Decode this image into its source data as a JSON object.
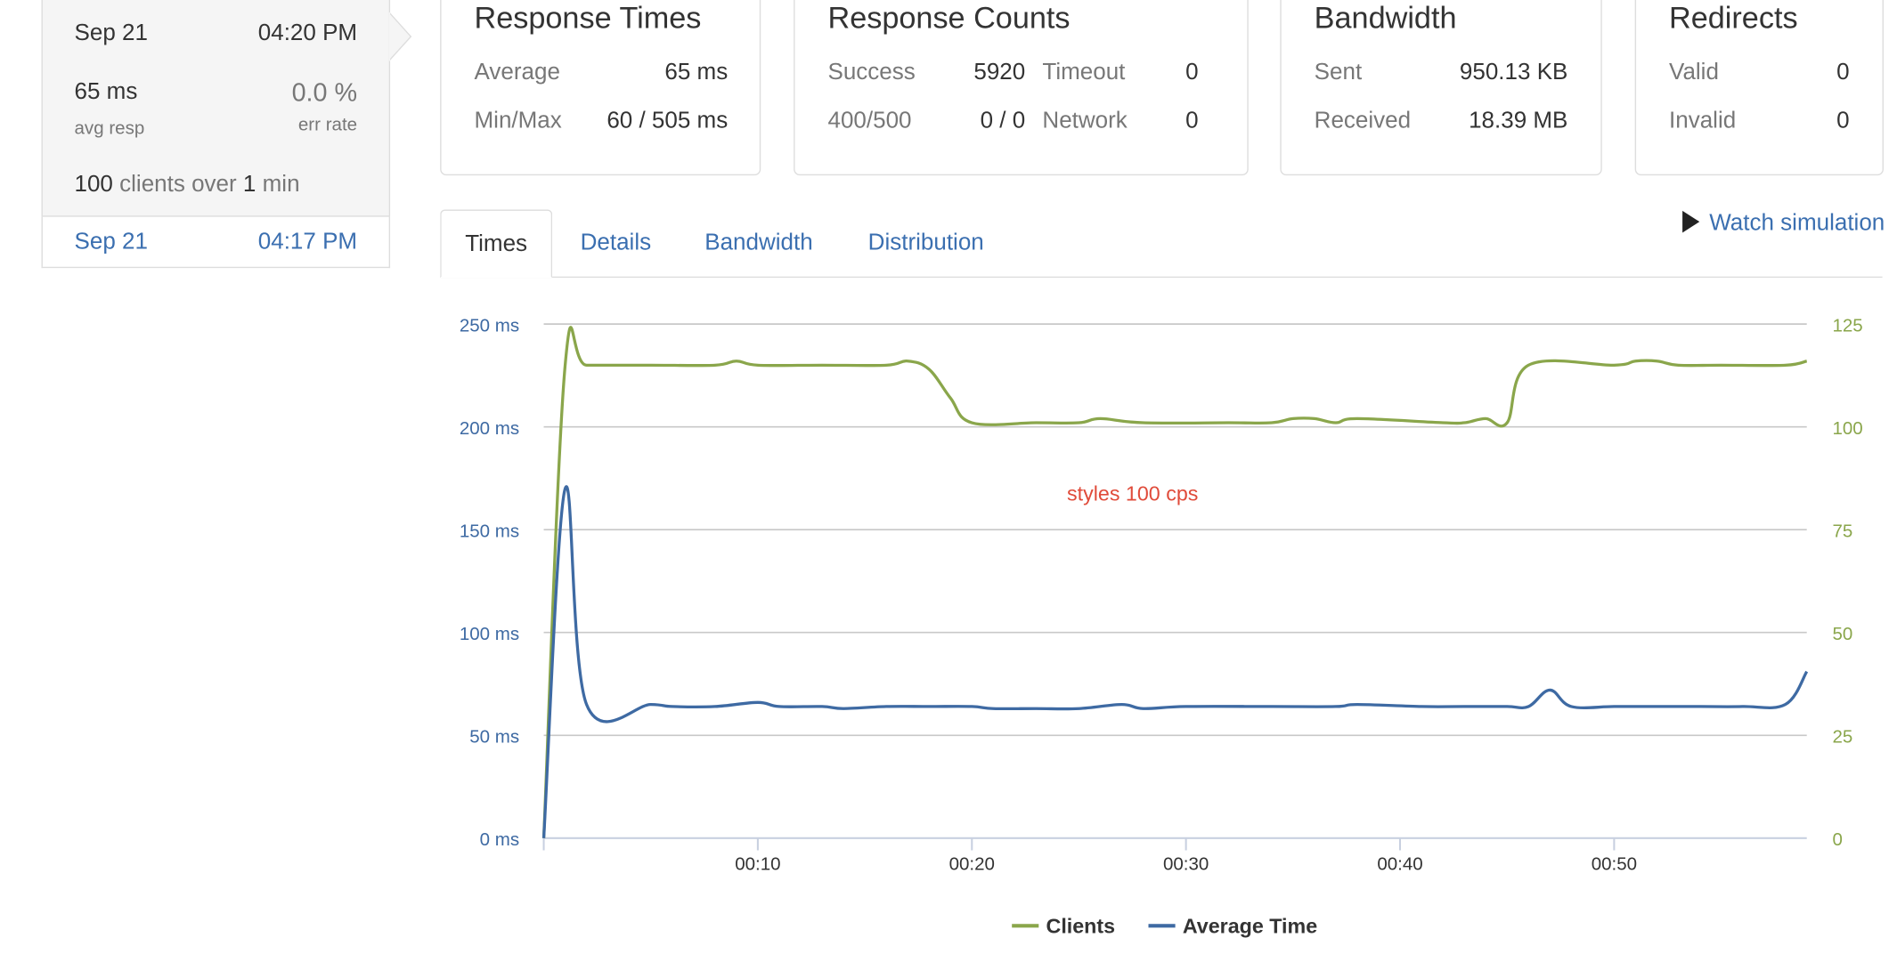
{
  "test_card": {
    "date": "Sep 21",
    "time": "04:20 PM",
    "avg_resp_value": "65 ms",
    "avg_resp_label": "avg resp",
    "err_rate_value": "0.0 %",
    "err_rate_label": "err rate",
    "clients_count": "100",
    "clients_text": "clients over",
    "duration_value": "1",
    "duration_unit": "min"
  },
  "history": [
    {
      "date": "Sep 21",
      "time": "04:17 PM"
    }
  ],
  "stats": {
    "response_times": {
      "title": "Response Times",
      "average_label": "Average",
      "average_value": "65 ms",
      "minmax_label": "Min/Max",
      "minmax_value": "60 / 505 ms"
    },
    "response_counts": {
      "title": "Response Counts",
      "success_label": "Success",
      "success_value": "5920",
      "timeout_label": "Timeout",
      "timeout_value": "0",
      "http_label": "400/500",
      "http_value": "0 / 0",
      "network_label": "Network",
      "network_value": "0"
    },
    "bandwidth": {
      "title": "Bandwidth",
      "sent_label": "Sent",
      "sent_value": "950.13 KB",
      "received_label": "Received",
      "received_value": "18.39 MB"
    },
    "redirects": {
      "title": "Redirects",
      "valid_label": "Valid",
      "valid_value": "0",
      "invalid_label": "Invalid",
      "invalid_value": "0"
    }
  },
  "tabs": [
    {
      "label": "Times",
      "active": true
    },
    {
      "label": "Details",
      "active": false
    },
    {
      "label": "Bandwidth",
      "active": false
    },
    {
      "label": "Distribution",
      "active": false
    }
  ],
  "watch_simulation": "Watch simulation",
  "icons": {
    "watch": "play-icon"
  },
  "colors": {
    "clients": "#8aa64b",
    "avg_time": "#3e6aa3",
    "annotation": "#e04b3a",
    "link": "#3b6fb0"
  },
  "chart_data": {
    "type": "line",
    "annotation": "styles 100 cps",
    "x_ticks": [
      "00:10",
      "00:20",
      "00:30",
      "00:40",
      "00:50"
    ],
    "x_range_seconds": [
      0,
      59
    ],
    "y_left_ticks": [
      "0 ms",
      "50 ms",
      "100 ms",
      "150 ms",
      "200 ms",
      "250 ms"
    ],
    "y_left_range": [
      0,
      250
    ],
    "y_right_ticks": [
      "0",
      "25",
      "50",
      "75",
      "100",
      "125"
    ],
    "y_right_range": [
      0,
      125
    ],
    "grid": true,
    "legend_position": "bottom",
    "series": [
      {
        "name": "Clients",
        "axis": "right",
        "x": [
          0,
          1,
          2,
          5,
          8,
          9,
          10,
          13,
          16,
          17,
          18,
          19,
          20,
          23,
          25,
          26,
          28,
          32,
          34,
          35,
          36,
          37,
          38,
          42,
          43,
          44,
          45,
          46,
          50,
          51,
          52,
          53,
          55,
          58,
          59
        ],
        "y": [
          0,
          115,
          115,
          115,
          115,
          116,
          115,
          115,
          115,
          116,
          114,
          107,
          101,
          101,
          101,
          102,
          101,
          101,
          101,
          102,
          102,
          101,
          102,
          101,
          101,
          102,
          101,
          115,
          115,
          116,
          116,
          115,
          115,
          115,
          116
        ]
      },
      {
        "name": "Average Time",
        "axis": "left",
        "x": [
          0,
          1,
          2,
          5,
          6,
          8,
          10,
          11,
          13,
          14,
          16,
          18,
          20,
          21,
          23,
          25,
          27,
          28,
          30,
          34,
          37,
          38,
          41,
          43,
          45,
          46,
          47,
          48,
          50,
          52,
          54,
          56,
          58,
          59
        ],
        "y": [
          0,
          170,
          65,
          65,
          64,
          64,
          66,
          64,
          64,
          63,
          64,
          64,
          64,
          63,
          63,
          63,
          65,
          63,
          64,
          64,
          64,
          65,
          64,
          64,
          64,
          64,
          72,
          64,
          64,
          64,
          64,
          64,
          65,
          81
        ]
      }
    ]
  }
}
